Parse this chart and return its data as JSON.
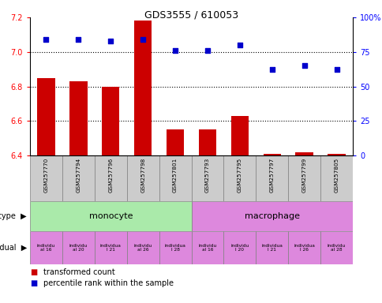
{
  "title": "GDS3555 / 610053",
  "samples": [
    "GSM257770",
    "GSM257794",
    "GSM257796",
    "GSM257798",
    "GSM257801",
    "GSM257793",
    "GSM257795",
    "GSM257797",
    "GSM257799",
    "GSM257805"
  ],
  "bar_values": [
    6.85,
    6.83,
    6.8,
    7.18,
    6.55,
    6.55,
    6.63,
    6.41,
    6.42,
    6.41
  ],
  "bar_bottom": 6.4,
  "scatter_values": [
    84,
    84,
    83,
    84,
    76,
    76,
    80,
    62,
    65,
    62
  ],
  "ylim_left": [
    6.4,
    7.2
  ],
  "ylim_right": [
    0,
    100
  ],
  "yticks_left": [
    6.4,
    6.6,
    6.8,
    7.0,
    7.2
  ],
  "yticks_right": [
    0,
    25,
    50,
    75,
    100
  ],
  "yticklabels_right": [
    "0",
    "25",
    "50",
    "75",
    "100%"
  ],
  "bar_color": "#cc0000",
  "scatter_color": "#0000cc",
  "cell_types": [
    "monocyte",
    "macrophage"
  ],
  "cell_type_spans": [
    5,
    5
  ],
  "cell_type_colors": [
    "#aaeaaa",
    "#dd88dd"
  ],
  "indiv_short": [
    "individu\nal 16",
    "individu\nal 20",
    "individua\nl 21",
    "individu\nal 26",
    "individua\nl 28",
    "individu\nal 16",
    "individu\nl 20",
    "individua\nl 21",
    "individua\nl 26",
    "individu\nal 28"
  ],
  "indiv_color": "#dd88dd",
  "legend_bar_label": "transformed count",
  "legend_scatter_label": "percentile rank within the sample",
  "label_cell_type": "cell type",
  "label_individual": "individual",
  "background_color": "#ffffff",
  "dotted_lines": [
    7.0,
    6.8,
    6.6
  ],
  "sample_bg": "#cccccc"
}
